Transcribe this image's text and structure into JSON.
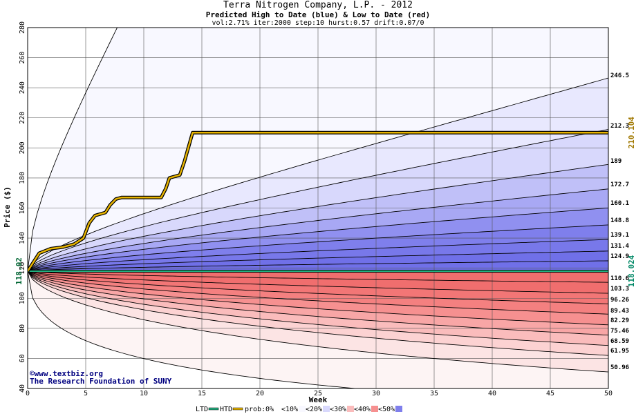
{
  "header": {
    "title": "Terra Nitrogen Company, L.P. - 2012",
    "subtitle": "Predicted High to Date (blue) &  Low to Date (red)",
    "params": "vol:2.71% iter:2000 step:10 hurst:0.57 drift:0.07/0"
  },
  "footer": {
    "copyright": "©www.textbiz.org",
    "org": "The Research Foundation of SUNY"
  },
  "chart_data": {
    "type": "area",
    "xlabel": "Week",
    "ylabel": "Price ($)",
    "xlim": [
      0,
      50
    ],
    "ylim": [
      40,
      280
    ],
    "x_ticks": [
      0,
      5,
      10,
      15,
      20,
      25,
      30,
      35,
      40,
      45,
      50
    ],
    "y_ticks": [
      40,
      60,
      80,
      100,
      120,
      140,
      160,
      180,
      200,
      220,
      240,
      260,
      280
    ],
    "grid": true,
    "start_value": 118.02,
    "start_label": "118.02",
    "high_band_end_values": [
      "246.5",
      "212.3",
      "189",
      "172.7",
      "160.1",
      "148.8",
      "139.1",
      "131.4",
      "124.9"
    ],
    "low_band_end_values": [
      "110.6",
      "103.3",
      "96.26",
      "89.43",
      "82.29",
      "75.46",
      "68.59",
      "61.95",
      "50.96"
    ],
    "htd": {
      "name": "HTD",
      "end_label": "210.104",
      "points": [
        [
          0,
          118.02
        ],
        [
          1,
          130
        ],
        [
          2,
          133
        ],
        [
          3,
          134
        ],
        [
          4,
          136
        ],
        [
          4.8,
          140
        ],
        [
          5.3,
          150
        ],
        [
          5.8,
          155
        ],
        [
          6.7,
          157
        ],
        [
          7.1,
          162
        ],
        [
          7.6,
          166
        ],
        [
          8.1,
          167
        ],
        [
          11.5,
          167
        ],
        [
          11.9,
          173
        ],
        [
          12.2,
          180
        ],
        [
          13.1,
          182
        ],
        [
          13.5,
          191
        ],
        [
          14.2,
          210.1
        ],
        [
          50,
          210.1
        ]
      ]
    },
    "ltd": {
      "name": "LTD",
      "end_label": "118.024",
      "points": [
        [
          0,
          118.02
        ],
        [
          50,
          118.02
        ]
      ]
    },
    "legend": {
      "ltd": "LTD",
      "htd": "HTD",
      "prob_label": "prob:",
      "items": [
        "0%",
        "<10%",
        "<20%",
        "<30%",
        "<40%",
        "<50%"
      ],
      "placement": "bottom"
    },
    "colors": {
      "high_fills": [
        "#f8f8ff",
        "#e8e8fe",
        "#d8d8fc",
        "#c0c0f8",
        "#a8a8f4",
        "#9090f0",
        "#7f7fec",
        "#7878ea",
        "#7070e8"
      ],
      "low_fills": [
        "#fdf4f4",
        "#fce4e4",
        "#fcd2d2",
        "#fabcbc",
        "#f8a6a6",
        "#f69090",
        "#f48080",
        "#f27676",
        "#f06e6e"
      ],
      "htd": "#e8b400",
      "ltd": "#22b080",
      "start_label": "#006633",
      "htd_label": "#a07800",
      "ltd_label": "#008866"
    }
  }
}
